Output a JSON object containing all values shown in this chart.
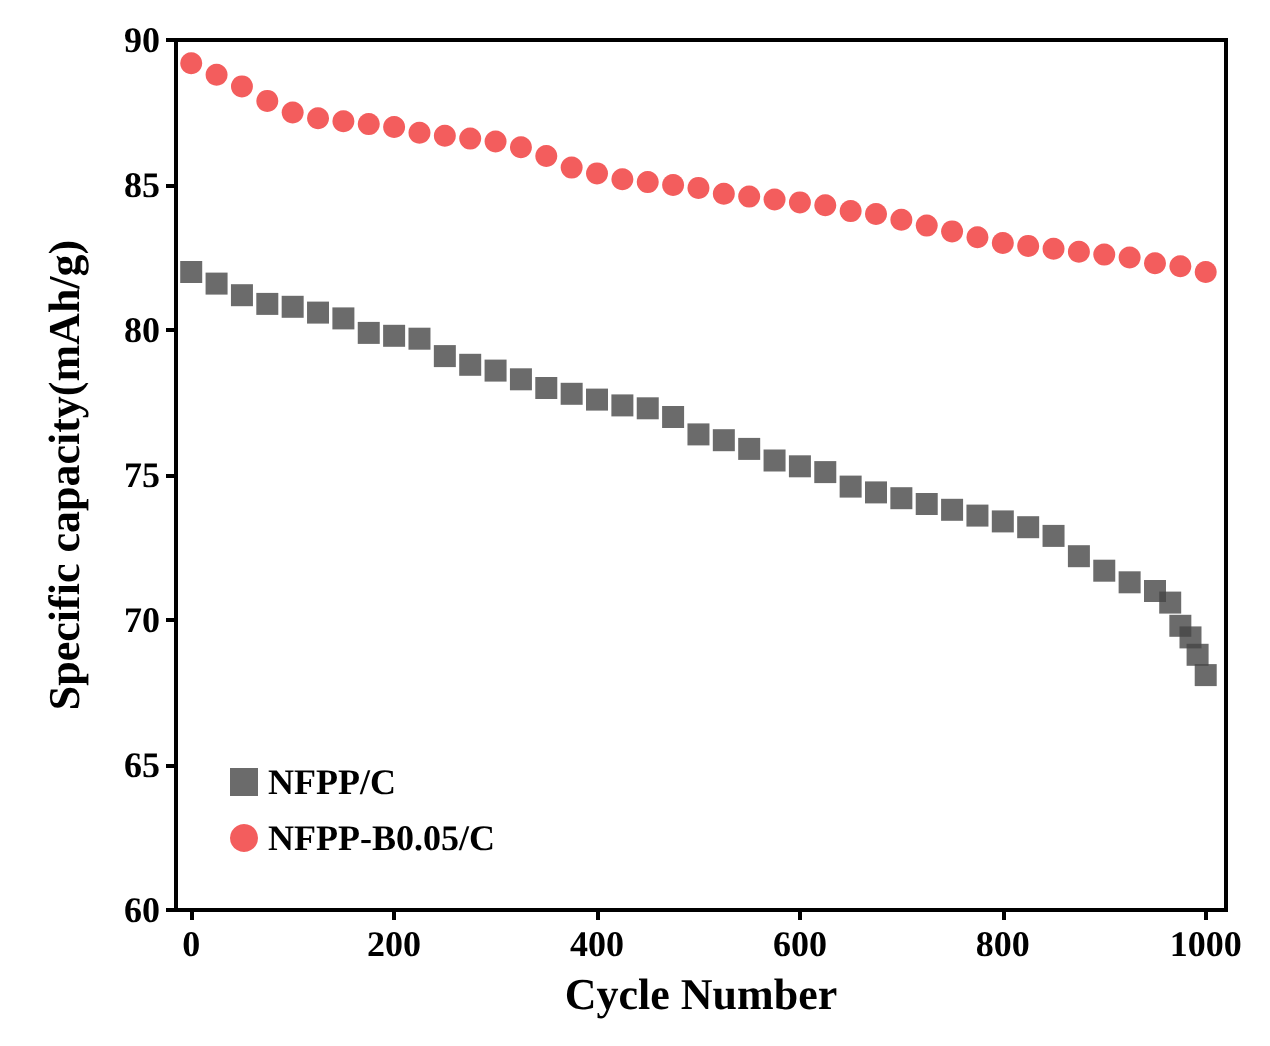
{
  "chart_data": {
    "type": "scatter",
    "xlabel": "Cycle Number",
    "ylabel": "Specific capacity(mAh/g)",
    "xlim": [
      -15,
      1020
    ],
    "xticks": [
      0,
      200,
      400,
      600,
      800,
      1000
    ],
    "ylim": [
      60,
      90
    ],
    "yticks": [
      60,
      65,
      70,
      75,
      80,
      85,
      90
    ],
    "grid": false,
    "legend": "bottom left",
    "series": [
      {
        "name": "NFPP/C",
        "color": "#464646",
        "marker": "square",
        "x": [
          0,
          25,
          50,
          75,
          100,
          125,
          150,
          175,
          200,
          225,
          250,
          275,
          300,
          325,
          350,
          375,
          400,
          425,
          450,
          475,
          500,
          525,
          550,
          575,
          600,
          625,
          650,
          675,
          700,
          725,
          750,
          775,
          800,
          825,
          850,
          875,
          900,
          925,
          950,
          965,
          975,
          985,
          992,
          1000
        ],
        "values": [
          82.0,
          81.6,
          81.2,
          80.9,
          80.8,
          80.6,
          80.4,
          79.9,
          79.8,
          79.7,
          79.1,
          78.8,
          78.6,
          78.3,
          78.0,
          77.8,
          77.6,
          77.4,
          77.3,
          77.0,
          76.4,
          76.2,
          75.9,
          75.5,
          75.3,
          75.1,
          74.6,
          74.4,
          74.2,
          74.0,
          73.8,
          73.6,
          73.4,
          73.2,
          72.9,
          72.2,
          71.7,
          71.3,
          71.0,
          70.6,
          69.8,
          69.4,
          68.8,
          68.1
        ]
      },
      {
        "name": "NFPP-B0.05/C",
        "color": "#f03434",
        "marker": "circle",
        "x": [
          0,
          25,
          50,
          75,
          100,
          125,
          150,
          175,
          200,
          225,
          250,
          275,
          300,
          325,
          350,
          375,
          400,
          425,
          450,
          475,
          500,
          525,
          550,
          575,
          600,
          625,
          650,
          675,
          700,
          725,
          750,
          775,
          800,
          825,
          850,
          875,
          900,
          925,
          950,
          975,
          1000
        ],
        "values": [
          89.2,
          88.8,
          88.4,
          87.9,
          87.5,
          87.3,
          87.2,
          87.1,
          87.0,
          86.8,
          86.7,
          86.6,
          86.5,
          86.3,
          86.0,
          85.6,
          85.4,
          85.2,
          85.1,
          85.0,
          84.9,
          84.7,
          84.6,
          84.5,
          84.4,
          84.3,
          84.1,
          84.0,
          83.8,
          83.6,
          83.4,
          83.2,
          83.0,
          82.9,
          82.8,
          82.7,
          82.6,
          82.5,
          82.3,
          82.2,
          82.0
        ]
      }
    ]
  }
}
